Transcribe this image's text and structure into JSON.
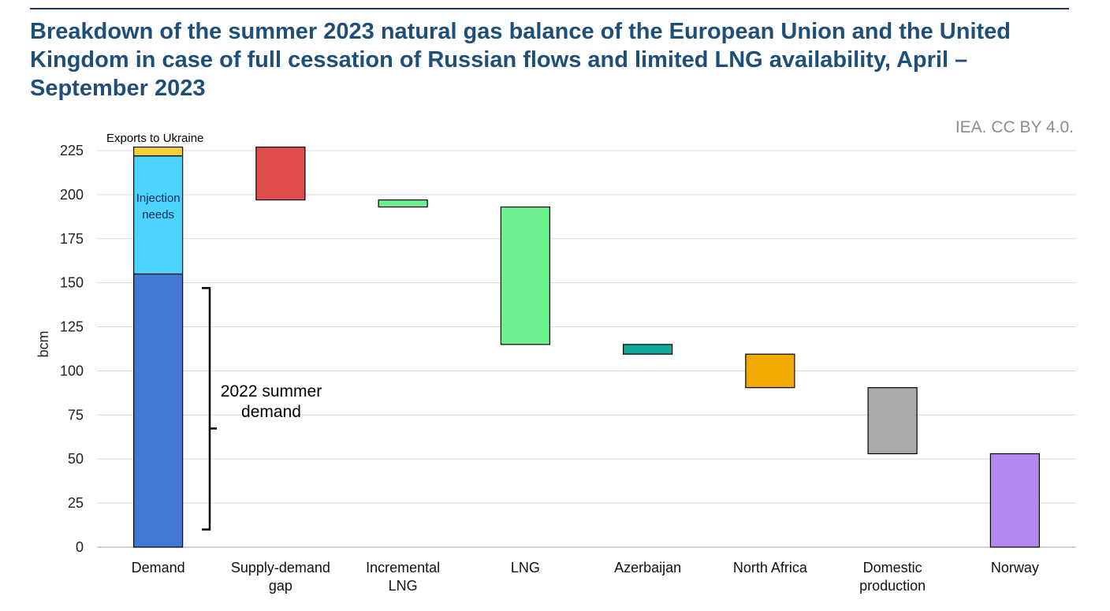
{
  "header": {
    "title": "Breakdown of the summer 2023 natural gas balance of the European Union and the United Kingdom in case of full cessation of Russian flows and limited LNG availability, April – September 2023",
    "credit": "IEA. CC BY 4.0."
  },
  "chart_data": {
    "type": "bar",
    "subtype": "waterfall",
    "ylabel": "bcm",
    "xlabel": "",
    "ylim": [
      0,
      225
    ],
    "yticks": [
      0,
      25,
      50,
      75,
      100,
      125,
      150,
      175,
      200,
      225
    ],
    "grid": true,
    "categories": [
      "Demand",
      "Supply-demand gap",
      "Incremental LNG",
      "LNG",
      "Azerbaijan",
      "North Africa",
      "Domestic production",
      "Norway"
    ],
    "category_lines": [
      [
        "Demand"
      ],
      [
        "Supply-demand",
        "gap"
      ],
      [
        "Incremental",
        "LNG"
      ],
      [
        "LNG"
      ],
      [
        "Azerbaijan"
      ],
      [
        "North Africa"
      ],
      [
        "Domestic",
        "production"
      ],
      [
        "Norway"
      ]
    ],
    "bars": [
      {
        "category": "Demand",
        "segments": [
          {
            "label": "2022 summer demand",
            "from": 0,
            "to": 155,
            "color": "#4279d4"
          },
          {
            "label": "Injection needs",
            "from": 155,
            "to": 222,
            "color": "#4dd3ff"
          },
          {
            "label": "Exports to Ukraine",
            "from": 222,
            "to": 227,
            "color": "#f6d03a"
          }
        ]
      },
      {
        "category": "Supply-demand gap",
        "from": 197,
        "to": 227,
        "color": "#e04d4d"
      },
      {
        "category": "Incremental LNG",
        "from": 193,
        "to": 197,
        "color": "#6cf08e"
      },
      {
        "category": "LNG",
        "from": 115,
        "to": 193,
        "color": "#6cf08e"
      },
      {
        "category": "Azerbaijan",
        "from": 109.5,
        "to": 115,
        "color": "#14a89a"
      },
      {
        "category": "North Africa",
        "from": 90.5,
        "to": 109.5,
        "color": "#f2a900"
      },
      {
        "category": "Domestic production",
        "from": 53,
        "to": 90.5,
        "color": "#aaaaaa"
      },
      {
        "category": "Norway",
        "from": 0,
        "to": 53,
        "color": "#b388ef"
      }
    ],
    "annotations": {
      "exports": "Exports to Ukraine",
      "injection": [
        "Injection",
        "needs"
      ],
      "bracket_label": [
        "2022 summer",
        "demand"
      ],
      "bracket_range": [
        10,
        147
      ]
    }
  }
}
